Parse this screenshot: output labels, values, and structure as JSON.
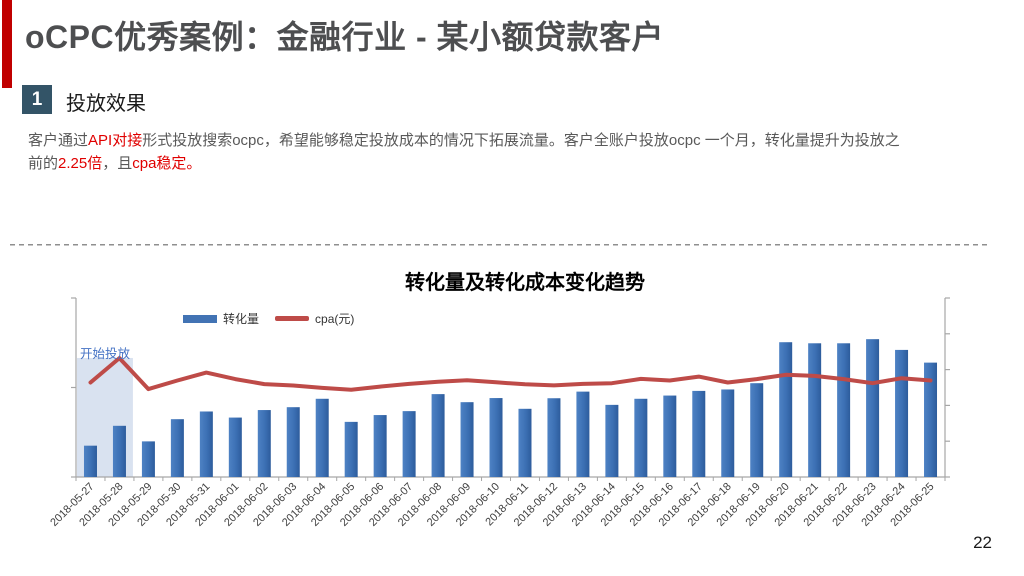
{
  "slide": {
    "title": "oCPC优秀案例：金融行业 - 某小额贷款客户",
    "section": {
      "number": "1",
      "label": "投放效果"
    },
    "paragraph_segments": [
      {
        "text": "客户通过",
        "highlight": false
      },
      {
        "text": "API对接",
        "highlight": true
      },
      {
        "text": "形式投放搜索ocpc，希望能够稳定投放成本的情况下拓展流量。客户全账户投放ocpc 一个月，转化量提升为投放之前的",
        "highlight": false
      },
      {
        "text": "2.25倍",
        "highlight": true
      },
      {
        "text": "，且",
        "highlight": false
      },
      {
        "text": "cpa稳定。",
        "highlight": true
      }
    ],
    "page_number": "22"
  },
  "colors": {
    "accent_red": "#C00000",
    "title_gray": "#4D4E50",
    "badge_blue": "#335467",
    "body_gray": "#595959",
    "highlight_red": "#E00000",
    "bar_gradient": [
      "#4E82C4",
      "#3C70B4",
      "#2D5C9C"
    ],
    "cpa_line_red": "#BE4B48",
    "legend_bar_blue": "#4273B4",
    "annotation_blue": "#4472C4",
    "highlight_region_fill": "#D9E2F0",
    "axis_gray": "#A6A6A6",
    "x_label_gray": "#3F3F3F"
  },
  "chart_data": {
    "type": "bar+line",
    "title": "转化量及转化成本变化趋势",
    "categories": [
      "2018-05-27",
      "2018-05-28",
      "2018-05-29",
      "2018-05-30",
      "2018-05-31",
      "2018-06-01",
      "2018-06-02",
      "2018-06-03",
      "2018-06-04",
      "2018-06-05",
      "2018-06-06",
      "2018-06-07",
      "2018-06-08",
      "2018-06-09",
      "2018-06-10",
      "2018-06-11",
      "2018-06-12",
      "2018-06-13",
      "2018-06-14",
      "2018-06-15",
      "2018-06-16",
      "2018-06-17",
      "2018-06-18",
      "2018-06-19",
      "2018-06-20",
      "2018-06-21",
      "2018-06-22",
      "2018-06-23",
      "2018-06-24",
      "2018-06-25"
    ],
    "series": [
      {
        "name": "转化量",
        "type": "bar",
        "values": [
          17.5,
          28.6,
          19.9,
          32.3,
          36.6,
          33.2,
          37.4,
          39.0,
          43.7,
          30.8,
          34.6,
          36.8,
          46.3,
          41.8,
          44.1,
          38.1,
          44.0,
          47.7,
          40.3,
          43.7,
          45.5,
          48.1,
          48.9,
          52.4,
          75.3,
          74.7,
          74.7,
          77.0,
          71.0,
          63.9
        ]
      },
      {
        "name": "cpa(元)",
        "type": "line",
        "values": [
          52.8,
          66.4,
          49.1,
          53.9,
          58.3,
          54.7,
          51.9,
          51.1,
          49.8,
          48.7,
          50.5,
          52.0,
          53.2,
          54.0,
          52.9,
          51.8,
          51.2,
          52.0,
          52.4,
          54.8,
          53.9,
          56.1,
          52.8,
          54.7,
          57.1,
          56.5,
          54.7,
          52.4,
          55.2,
          53.9
        ]
      }
    ],
    "values_scale": "percent of plot height; source chart shows no numeric axis labels",
    "ylim": [
      0,
      100
    ],
    "left_axis_ticks_pct": [
      0,
      50,
      100
    ],
    "right_axis_ticks_pct": [
      0,
      20,
      40,
      60,
      80,
      100
    ],
    "grid": "off",
    "legend_position": "top-left-inside",
    "xlabel": "",
    "ylabel": "",
    "annotation": {
      "text": "开始投放",
      "region_categories": 2,
      "region_top_pct": 66.5
    }
  }
}
